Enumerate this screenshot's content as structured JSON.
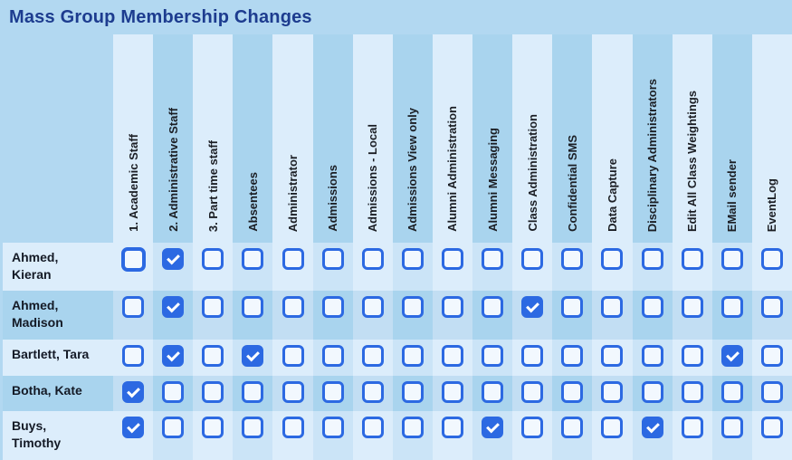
{
  "title": "Mass Group Membership Changes",
  "colors": {
    "page_bg": "#b2d8f1",
    "accent_blue": "#2c69e2",
    "title_text": "#1d3c8f",
    "header_text": "#1b1e24",
    "label_text": "#141a26",
    "column_light": "#dcedfb",
    "column_dark": "#a9d4ee",
    "cell_lightrow_darkcol": "#cbe4f7",
    "cell_darkrow_lightcol": "#c2def3"
  },
  "table": {
    "groups": [
      "1. Academic Staff",
      "2. Administrative Staff",
      "3. Part time staff",
      "Absentees",
      "Administrator",
      "Admissions",
      "Admissions - Local",
      "Admissions View only",
      "Alumni Administration",
      "Alumni Messaging",
      "Class Administration",
      "Confidential SMS",
      "Data Capture",
      "Disciplinary Administrators",
      "Edit All Class Weightings",
      "EMail sender",
      "EventLog"
    ],
    "members": [
      {
        "name": "Ahmed, Kieran",
        "name_lines": [
          "Ahmed,",
          "Kieran"
        ],
        "memberships": [
          0,
          1,
          0,
          0,
          0,
          0,
          0,
          0,
          0,
          0,
          0,
          0,
          0,
          0,
          0,
          0,
          0
        ]
      },
      {
        "name": "Ahmed, Madison",
        "name_lines": [
          "Ahmed,",
          "Madison"
        ],
        "memberships": [
          0,
          1,
          0,
          0,
          0,
          0,
          0,
          0,
          0,
          0,
          1,
          0,
          0,
          0,
          0,
          0,
          0
        ]
      },
      {
        "name": "Bartlett, Tara",
        "name_lines": [
          "Bartlett, Tara"
        ],
        "memberships": [
          0,
          1,
          0,
          1,
          0,
          0,
          0,
          0,
          0,
          0,
          0,
          0,
          0,
          0,
          0,
          1,
          0
        ]
      },
      {
        "name": "Botha, Kate",
        "name_lines": [
          "Botha, Kate"
        ],
        "memberships": [
          1,
          0,
          0,
          0,
          0,
          0,
          0,
          0,
          0,
          0,
          0,
          0,
          0,
          0,
          0,
          0,
          0
        ]
      },
      {
        "name": "Buys, Timothy",
        "name_lines": [
          "Buys,",
          "Timothy"
        ],
        "memberships": [
          1,
          0,
          0,
          0,
          0,
          0,
          0,
          0,
          0,
          1,
          0,
          0,
          0,
          1,
          0,
          0,
          0
        ]
      }
    ],
    "focused_checkbox": {
      "member_index": 0,
      "group_index": 0
    }
  }
}
